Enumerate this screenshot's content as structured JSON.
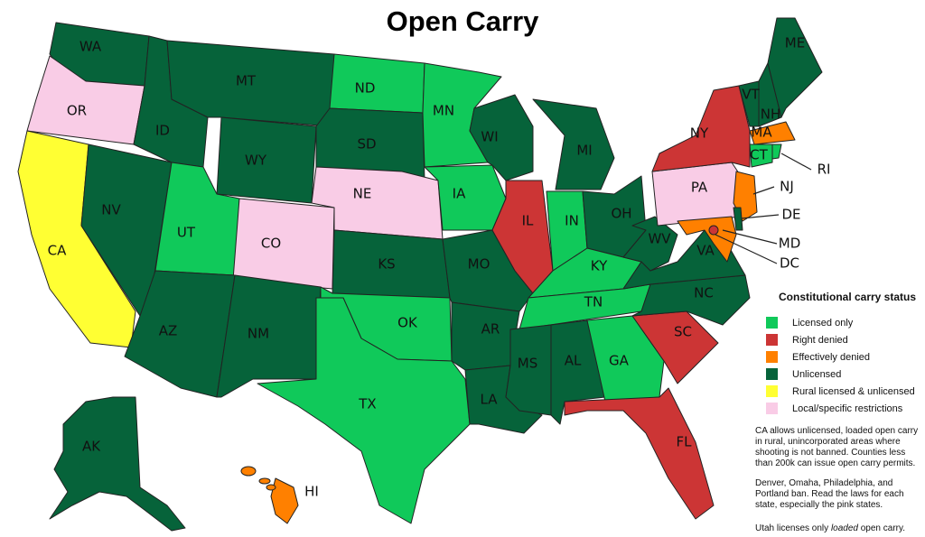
{
  "title": "Open Carry",
  "colors": {
    "licensed_only": "#10c95a",
    "right_denied": "#cc3535",
    "effectively_denied": "#ff8000",
    "unlicensed": "#06633a",
    "rural_licensed_unlicensed": "#ffff33",
    "local_restrictions": "#f9cce6"
  },
  "legend": {
    "title": "Constitutional carry status",
    "items": [
      {
        "key": "licensed_only",
        "label": "Licensed only"
      },
      {
        "key": "right_denied",
        "label": "Right denied"
      },
      {
        "key": "effectively_denied",
        "label": "Effectively denied"
      },
      {
        "key": "unlicensed",
        "label": "Unlicensed"
      },
      {
        "key": "rural_licensed_unlicensed",
        "label": "Rural licensed & unlicensed"
      },
      {
        "key": "local_restrictions",
        "label": "Local/specific restrictions"
      }
    ]
  },
  "notes": [
    "CA allows unlicensed, loaded open carry in rural, unincorporated areas where shooting is not banned. Counties less than 200k can issue open carry permits.",
    "Denver, Omaha, Philadelphia, and Portland ban. Read the laws for each state, especially the pink states."
  ],
  "note_utah": {
    "before": "Utah licenses only ",
    "em": "loaded",
    "after": " open carry."
  },
  "states": {
    "WA": "unlicensed",
    "OR": "local_restrictions",
    "CA": "rural_licensed_unlicensed",
    "NV": "unlicensed",
    "ID": "unlicensed",
    "MT": "unlicensed",
    "WY": "unlicensed",
    "UT": "licensed_only",
    "CO": "local_restrictions",
    "AZ": "unlicensed",
    "NM": "unlicensed",
    "ND": "licensed_only",
    "SD": "unlicensed",
    "NE": "local_restrictions",
    "KS": "unlicensed",
    "OK": "licensed_only",
    "TX": "licensed_only",
    "MN": "licensed_only",
    "IA": "licensed_only",
    "MO": "unlicensed",
    "AR": "unlicensed",
    "LA": "unlicensed",
    "WI": "unlicensed",
    "IL": "right_denied",
    "MI": "unlicensed",
    "IN": "licensed_only",
    "OH": "unlicensed",
    "KY": "licensed_only",
    "TN": "licensed_only",
    "MS": "unlicensed",
    "AL": "unlicensed",
    "GA": "licensed_only",
    "FL": "right_denied",
    "SC": "right_denied",
    "NC": "unlicensed",
    "VA": "unlicensed",
    "WV": "unlicensed",
    "PA": "local_restrictions",
    "NY": "right_denied",
    "VT": "unlicensed",
    "NH": "unlicensed",
    "ME": "unlicensed",
    "MA": "effectively_denied",
    "CT": "licensed_only",
    "RI": "licensed_only",
    "NJ": "effectively_denied",
    "DE": "unlicensed",
    "MD": "effectively_denied",
    "DC": "right_denied",
    "AK": "unlicensed",
    "HI": "effectively_denied"
  }
}
